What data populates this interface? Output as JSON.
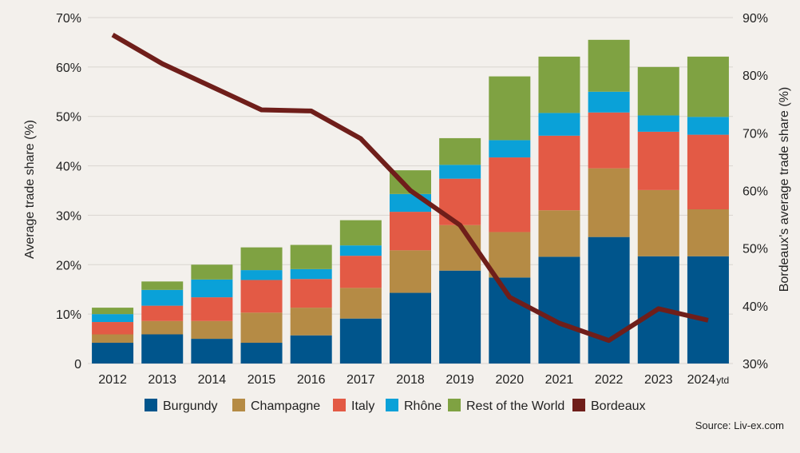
{
  "chart_data": {
    "type": "bar",
    "stacked": true,
    "categories": [
      "2012",
      "2013",
      "2014",
      "2015",
      "2016",
      "2017",
      "2018",
      "2019",
      "2020",
      "2021",
      "2022",
      "2023",
      "2024"
    ],
    "category_suffix_last": "ytd",
    "series": [
      {
        "name": "Burgundy",
        "color": "#00558c",
        "values": [
          4.2,
          5.9,
          5.0,
          4.2,
          5.7,
          9.1,
          14.3,
          18.8,
          17.4,
          21.6,
          25.6,
          21.7,
          21.7
        ]
      },
      {
        "name": "Champagne",
        "color": "#b58b45",
        "values": [
          1.7,
          2.7,
          3.6,
          6.1,
          5.6,
          6.2,
          8.6,
          9.2,
          9.2,
          9.4,
          13.9,
          13.4,
          9.5
        ]
      },
      {
        "name": "Italy",
        "color": "#e35a45",
        "values": [
          2.5,
          3.1,
          4.8,
          6.6,
          5.8,
          6.5,
          7.8,
          9.4,
          15.1,
          15.1,
          11.3,
          11.8,
          15.1
        ]
      },
      {
        "name": "Rhône",
        "color": "#0aa1d8",
        "values": [
          1.6,
          3.2,
          3.6,
          2.0,
          2.0,
          2.1,
          3.6,
          2.8,
          3.5,
          4.6,
          4.2,
          3.3,
          3.6
        ]
      },
      {
        "name": "Rest of the World",
        "color": "#7fa242",
        "values": [
          1.3,
          1.7,
          3.0,
          4.6,
          4.9,
          5.1,
          4.8,
          5.4,
          12.9,
          11.4,
          10.5,
          9.8,
          12.2
        ]
      }
    ],
    "line_series": {
      "name": "Bordeaux",
      "color": "#6f1e1a",
      "axis": "right",
      "values": [
        87.0,
        82.0,
        78.0,
        74.0,
        73.8,
        69.0,
        60.0,
        54.0,
        41.5,
        37.0,
        34.0,
        39.5,
        37.5
      ]
    },
    "ylabel": "Average trade share (%)",
    "y2label": "Bordeaux's average trade share (%)",
    "ylim": [
      0,
      70
    ],
    "y2lim": [
      30,
      90
    ],
    "yticks": [
      "0",
      "10%",
      "20%",
      "30%",
      "40%",
      "50%",
      "60%",
      "70%"
    ],
    "y2ticks": [
      "30%",
      "40%",
      "50%",
      "60%",
      "70%",
      "80%",
      "90%"
    ],
    "grid": true,
    "legend_position": "bottom",
    "source": "Source: Liv-ex.com"
  }
}
